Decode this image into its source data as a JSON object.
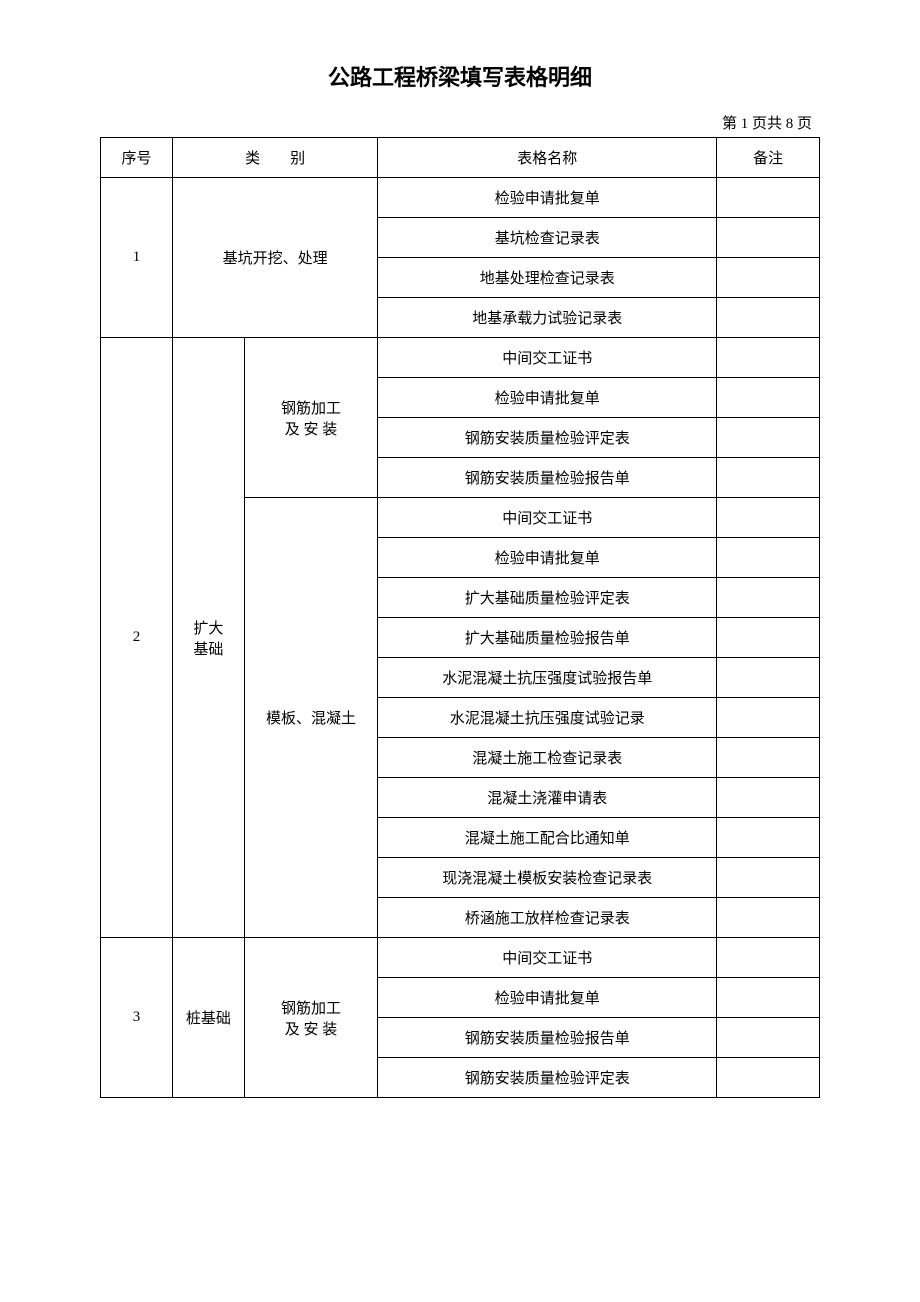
{
  "title": "公路工程桥梁填写表格明细",
  "page_info": "第 1 页共 8 页",
  "headers": {
    "seq": "序号",
    "category": "类　　别",
    "form_name": "表格名称",
    "remark": "备注"
  },
  "colors": {
    "border": "#000000",
    "background": "#ffffff",
    "text": "#000000"
  },
  "typography": {
    "title_fontsize": 22,
    "body_fontsize": 15,
    "title_font": "SimHei",
    "body_font": "SimSun"
  },
  "column_widths": {
    "seq": 70,
    "cat1": 70,
    "cat2": 130,
    "name": 330,
    "remark": 100
  },
  "sections": [
    {
      "seq": "1",
      "category_full": "基坑开挖、处理",
      "forms": [
        "检验申请批复单",
        "基坑检查记录表",
        "地基处理检查记录表",
        "地基承载力试验记录表"
      ]
    },
    {
      "seq": "2",
      "category_main": "扩大基础",
      "subcategories": [
        {
          "name": "钢筋加工及 安 装",
          "forms": [
            "中间交工证书",
            "检验申请批复单",
            "钢筋安装质量检验评定表",
            "钢筋安装质量检验报告单"
          ]
        },
        {
          "name": "模板、混凝土",
          "forms": [
            "中间交工证书",
            "检验申请批复单",
            "扩大基础质量检验评定表",
            "扩大基础质量检验报告单",
            "水泥混凝土抗压强度试验报告单",
            "水泥混凝土抗压强度试验记录",
            "混凝土施工检查记录表",
            "混凝土浇灌申请表",
            "混凝土施工配合比通知单",
            "现浇混凝土模板安装检查记录表",
            "桥涵施工放样检查记录表"
          ]
        }
      ]
    },
    {
      "seq": "3",
      "category_main": "桩基础",
      "subcategories": [
        {
          "name": "钢筋加工及 安 装",
          "forms": [
            "中间交工证书",
            "检验申请批复单",
            "钢筋安装质量检验报告单",
            "钢筋安装质量检验评定表"
          ]
        }
      ]
    }
  ]
}
